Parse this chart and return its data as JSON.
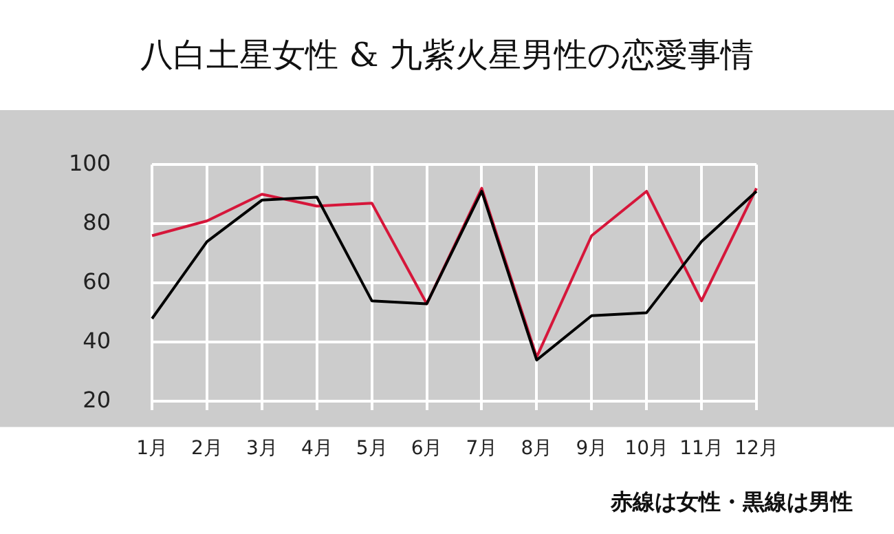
{
  "chart_data": {
    "type": "line",
    "title": "八白土星女性 & 九紫火星男性の恋愛事情",
    "categories": [
      "1月",
      "2月",
      "3月",
      "4月",
      "5月",
      "6月",
      "7月",
      "8月",
      "9月",
      "10月",
      "11月",
      "12月"
    ],
    "series": [
      {
        "color": "#d6163a",
        "values": [
          76,
          81,
          90,
          86,
          87,
          53,
          92,
          35,
          76,
          91,
          54,
          92
        ]
      },
      {
        "color": "#000000",
        "values": [
          48,
          74,
          88,
          89,
          54,
          53,
          91,
          34,
          49,
          50,
          74,
          91
        ]
      }
    ],
    "ylim": [
      17,
      100
    ],
    "yticks": [
      20,
      40,
      60,
      80,
      100
    ],
    "grid": true,
    "legend": false,
    "marker": "none",
    "line_style": "solid",
    "annotations": [
      "赤線は女性・黒線は男性"
    ]
  }
}
